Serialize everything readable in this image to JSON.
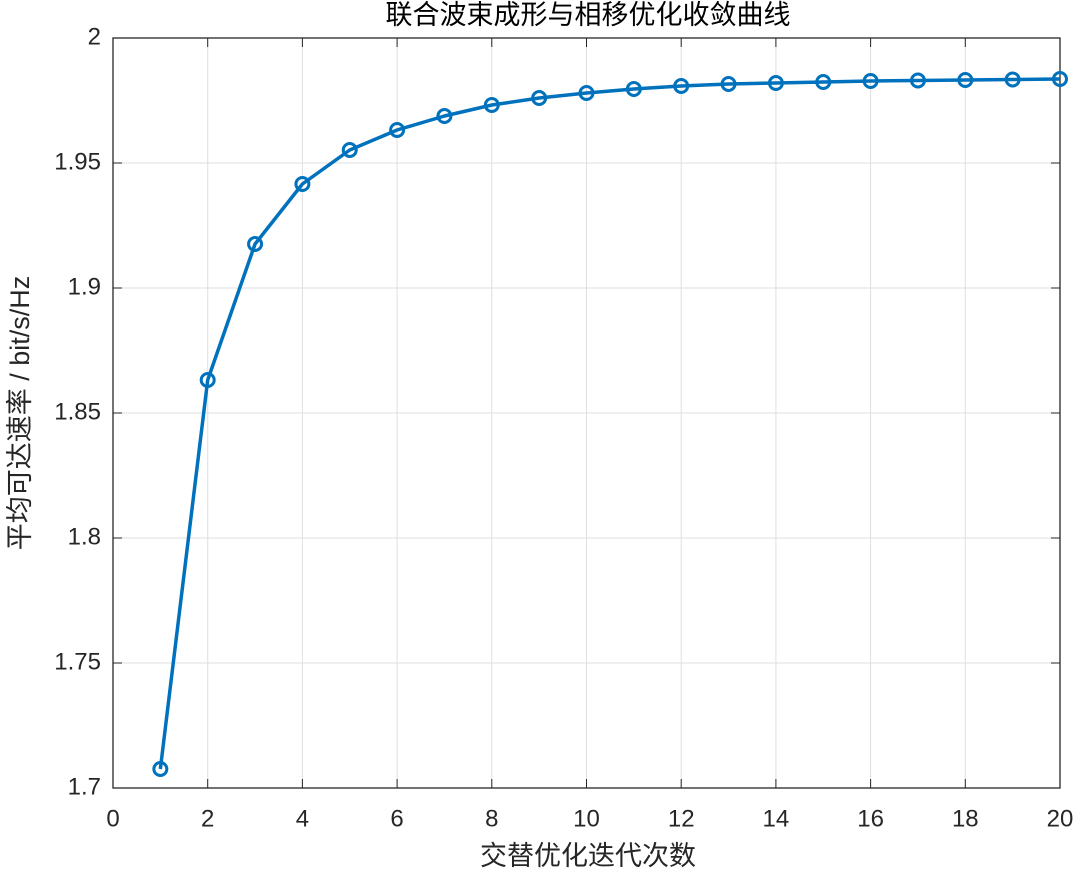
{
  "chart_data": {
    "type": "line",
    "title": "联合波束成形与相移优化收敛曲线",
    "xlabel": "交替优化迭代次数",
    "ylabel": "平均可达速率 / bit/s/Hz",
    "x": [
      1,
      2,
      3,
      4,
      5,
      6,
      7,
      8,
      9,
      10,
      11,
      12,
      13,
      14,
      15,
      16,
      17,
      18,
      19,
      20
    ],
    "series": [
      {
        "color": "#0072BD",
        "values": [
          1.7076,
          1.8632,
          1.9176,
          1.9416,
          1.9552,
          1.9632,
          1.9688,
          1.9732,
          1.976,
          1.978,
          1.9796,
          1.9808,
          1.9816,
          1.982,
          1.9824,
          1.9828,
          1.983,
          1.9832,
          1.9834,
          1.9836
        ]
      }
    ],
    "xlim": [
      0,
      20
    ],
    "xticks": [
      0,
      2,
      4,
      6,
      8,
      10,
      12,
      14,
      16,
      18,
      20
    ],
    "ylim": [
      1.7,
      2
    ],
    "yticks": [
      1.7,
      1.75,
      1.8,
      1.85,
      1.9,
      1.95,
      2
    ],
    "grid": true,
    "marker": "circle"
  }
}
